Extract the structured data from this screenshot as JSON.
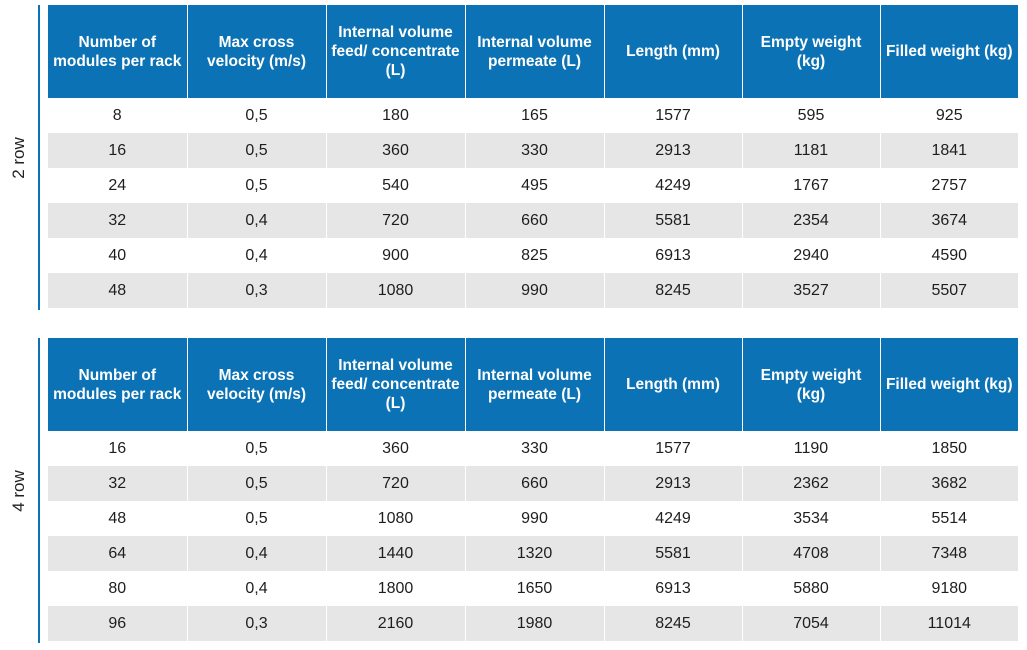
{
  "headers": [
    "Number of modules per rack",
    "Max cross velocity (m/s)",
    "Internal volume feed/ concentrate (L)",
    "Internal volume permeate (L)",
    "Length (mm)",
    "Empty weight (kg)",
    "Filled weight (kg)"
  ],
  "tables": [
    {
      "label": "2 row",
      "rows": [
        [
          "8",
          "0,5",
          "180",
          "165",
          "1577",
          "595",
          "925"
        ],
        [
          "16",
          "0,5",
          "360",
          "330",
          "2913",
          "1181",
          "1841"
        ],
        [
          "24",
          "0,5",
          "540",
          "495",
          "4249",
          "1767",
          "2757"
        ],
        [
          "32",
          "0,4",
          "720",
          "660",
          "5581",
          "2354",
          "3674"
        ],
        [
          "40",
          "0,4",
          "900",
          "825",
          "6913",
          "2940",
          "4590"
        ],
        [
          "48",
          "0,3",
          "1080",
          "990",
          "8245",
          "3527",
          "5507"
        ]
      ]
    },
    {
      "label": "4 row",
      "rows": [
        [
          "16",
          "0,5",
          "360",
          "330",
          "1577",
          "1190",
          "1850"
        ],
        [
          "32",
          "0,5",
          "720",
          "660",
          "2913",
          "2362",
          "3682"
        ],
        [
          "48",
          "0,5",
          "1080",
          "990",
          "4249",
          "3534",
          "5514"
        ],
        [
          "64",
          "0,4",
          "1440",
          "1320",
          "5581",
          "4708",
          "7348"
        ],
        [
          "80",
          "0,4",
          "1800",
          "1650",
          "6913",
          "5880",
          "9180"
        ],
        [
          "96",
          "0,3",
          "2160",
          "1980",
          "8245",
          "7054",
          "11014"
        ]
      ]
    }
  ],
  "colors": {
    "header_bg": "#0b72b5",
    "header_text": "#ffffff",
    "stripe": "#e6e6e6"
  }
}
